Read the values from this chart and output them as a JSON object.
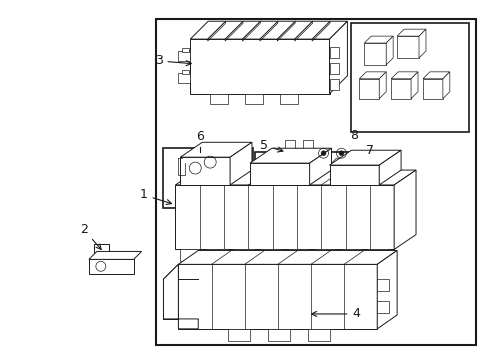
{
  "bg_color": "#ffffff",
  "border_color": "#1a1a1a",
  "line_color": "#1a1a1a",
  "label_color": "#1a1a1a",
  "lw_main": 1.2,
  "lw_part": 0.7,
  "lw_thin": 0.5,
  "fig_w": 4.89,
  "fig_h": 3.6,
  "dpi": 100
}
